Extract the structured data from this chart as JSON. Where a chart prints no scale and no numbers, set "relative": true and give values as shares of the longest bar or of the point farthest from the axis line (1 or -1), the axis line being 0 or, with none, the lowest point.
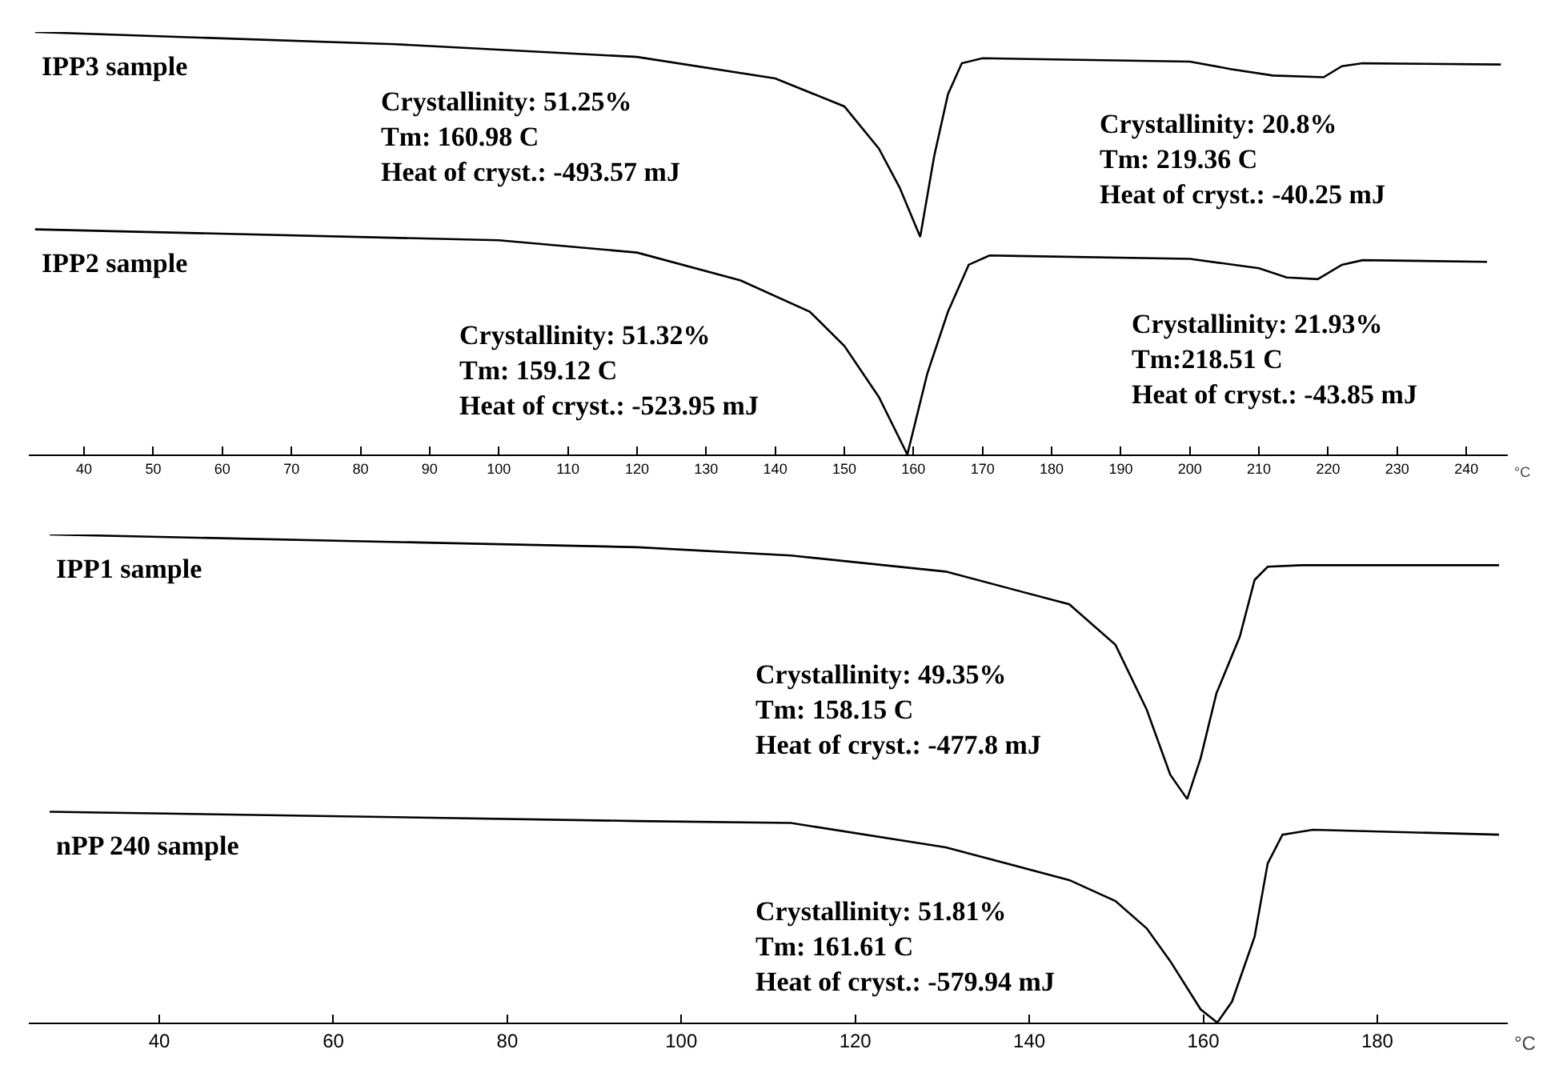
{
  "chart_data": [
    {
      "type": "line",
      "relative": true,
      "xlabel": "°C",
      "xlim": [
        32,
        246
      ],
      "xticks": [
        40,
        50,
        60,
        70,
        80,
        90,
        100,
        110,
        120,
        130,
        140,
        150,
        160,
        170,
        180,
        190,
        200,
        210,
        220,
        230,
        240
      ],
      "grid": false,
      "legend": false,
      "marker": "none",
      "line_style": "solid",
      "series": [
        {
          "name": "IPP3 sample",
          "color": "#000000",
          "x": [
            32.9,
            85,
            120,
            140,
            150,
            155,
            158,
            160.98,
            163,
            165,
            167,
            170,
            200,
            206,
            212,
            219.36,
            222,
            225,
            245
          ],
          "values": [
            1.0,
            0.971,
            0.941,
            0.89,
            0.824,
            0.724,
            0.632,
            0.515,
            0.706,
            0.853,
            0.926,
            0.938,
            0.93,
            0.912,
            0.897,
            0.893,
            0.919,
            0.926,
            0.923
          ]
        },
        {
          "name": "IPP2 sample",
          "color": "#000000",
          "x": [
            32.9,
            100,
            120,
            135,
            145,
            150,
            155,
            159.12,
            162,
            165,
            168,
            171,
            200,
            210,
            214,
            218.51,
            222,
            225,
            243
          ],
          "values": [
            0.533,
            0.507,
            0.478,
            0.412,
            0.338,
            0.257,
            0.136,
            0,
            0.191,
            0.338,
            0.449,
            0.471,
            0.463,
            0.441,
            0.419,
            0.415,
            0.449,
            0.46,
            0.456
          ]
        }
      ],
      "annotations": [
        "Crystallinity: 51.25%\nTm: 160.98 C\nHeat of cryst.: -493.57 mJ",
        "Crystallinity: 20.8%\nTm: 219.36 C\nHeat of cryst.: -40.25 mJ",
        "Crystallinity: 51.32%\nTm: 159.12 C\nHeat of cryst.: -523.95 mJ",
        "Crystallinity: 21.93%\nTm:218.51 C\nHeat of cryst.: -43.85 mJ"
      ]
    },
    {
      "type": "line",
      "relative": true,
      "xlabel": "°C",
      "xlim": [
        25,
        195
      ],
      "xticks": [
        40,
        60,
        80,
        100,
        120,
        140,
        160,
        180
      ],
      "grid": false,
      "legend": false,
      "marker": "none",
      "line_style": "solid",
      "series": [
        {
          "name": "IPP1 sample",
          "color": "#000000",
          "x": [
            27.4,
            94.9,
            112.6,
            130.4,
            144.6,
            149.9,
            153.5,
            156.2,
            158.15,
            159.7,
            161.5,
            164.2,
            165.9,
            167.4,
            171.3,
            194
          ],
          "values": [
            1.0,
            0.974,
            0.957,
            0.924,
            0.857,
            0.774,
            0.641,
            0.508,
            0.458,
            0.542,
            0.674,
            0.791,
            0.907,
            0.934,
            0.937,
            0.937
          ]
        },
        {
          "name": "nPP 240 sample",
          "color": "#000000",
          "x": [
            27.4,
            94.9,
            112.6,
            130.4,
            144.6,
            149.9,
            153.5,
            156.2,
            159.7,
            161.61,
            163.3,
            165.9,
            167.4,
            169.1,
            172.6,
            194
          ],
          "values": [
            0.432,
            0.413,
            0.409,
            0.359,
            0.292,
            0.249,
            0.193,
            0.126,
            0.027,
            0,
            0.043,
            0.176,
            0.326,
            0.385,
            0.395,
            0.385
          ]
        }
      ],
      "annotations": [
        "Crystallinity: 49.35%\nTm: 158.15 C\nHeat of cryst.: -477.8 mJ",
        "Crystallinity: 51.81%\nTm: 161.61 C\nHeat of cryst.: -579.94 mJ"
      ]
    }
  ]
}
